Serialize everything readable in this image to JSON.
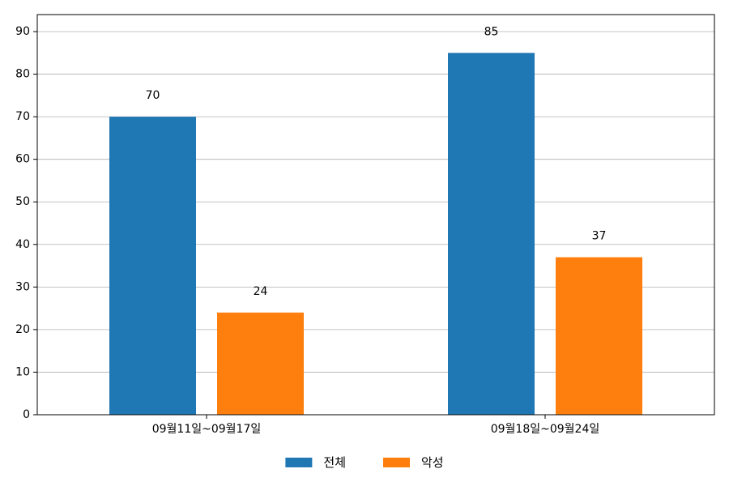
{
  "chart_data": {
    "type": "bar",
    "categories": [
      "09월11일~09월17일",
      "09월18일~09월24일"
    ],
    "series": [
      {
        "name": "전체",
        "values": [
          70,
          85
        ],
        "color": "#1f77b4"
      },
      {
        "name": "악성",
        "values": [
          24,
          37
        ],
        "color": "#ff7f0e"
      }
    ],
    "ylim": [
      0,
      94
    ],
    "yticks": [
      0,
      10,
      20,
      30,
      40,
      50,
      60,
      70,
      80,
      90
    ],
    "grid": true,
    "grid_axis": "y",
    "legend_position": "bottom-center",
    "data_labels": true
  }
}
